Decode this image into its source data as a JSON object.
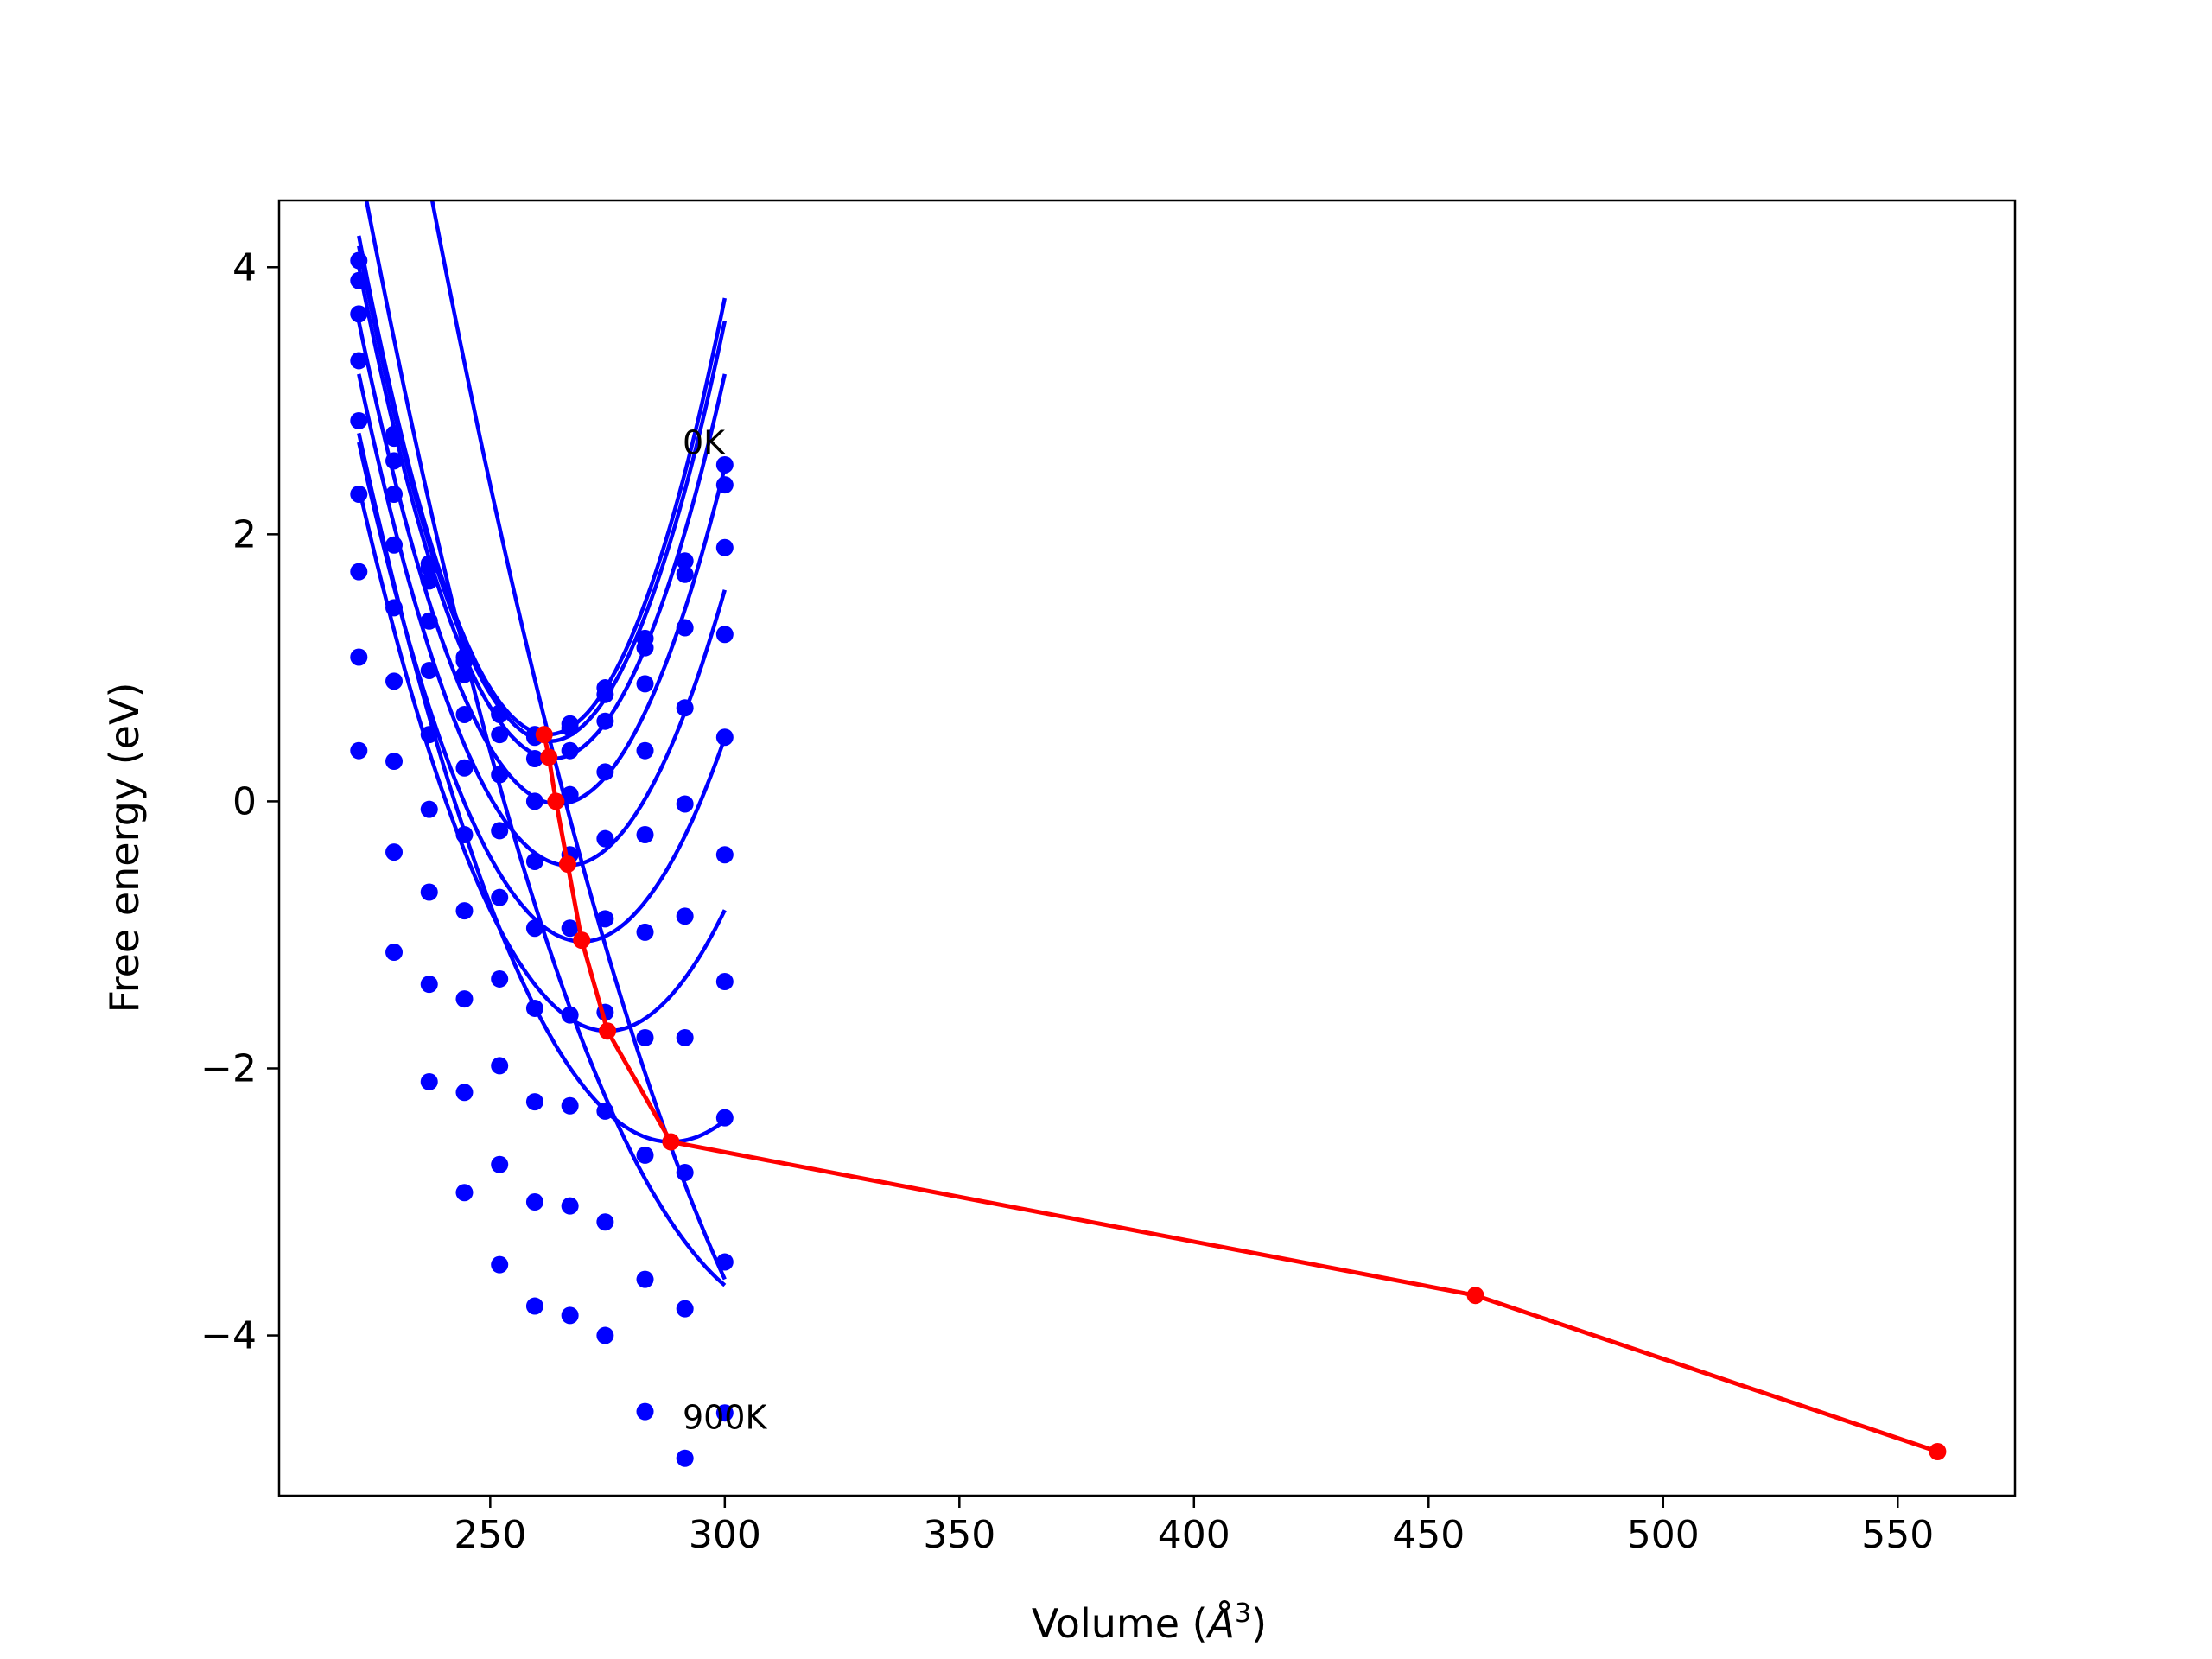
{
  "chart_data": {
    "type": "scatter",
    "title": "",
    "xlabel": "Volume (",
    "xlabel_unit_base": "Å",
    "xlabel_unit_exp": "3",
    "xlabel_close": ")",
    "ylabel": "Free energy (eV)",
    "xlim": [
      205,
      575
    ],
    "ylim": [
      -5.2,
      4.5
    ],
    "xticks": [
      250,
      300,
      350,
      400,
      450,
      500,
      550
    ],
    "yticks": [
      4,
      2,
      0,
      -2,
      -4
    ],
    "ytick_labels": [
      "4",
      "2",
      "0",
      "−2",
      "−4"
    ],
    "grid": false,
    "legend": "none",
    "annotations": [
      {
        "text": "0K",
        "x": 291,
        "y": 2.6
      },
      {
        "text": "900K",
        "x": 291,
        "y": -4.7
      }
    ],
    "series_color": "#0000ff",
    "minima_color": "#ff0000",
    "volumes": [
      222,
      229.5,
      237,
      244.5,
      252,
      259.5,
      267,
      274.5,
      283,
      291.5,
      300
    ],
    "isotherms": [
      {
        "points": [
          4.05,
          2.75,
          1.78,
          1.08,
          0.66,
          0.5,
          0.58,
          0.85,
          1.22,
          1.8,
          2.52
        ],
        "fit": {
          "a": 0.0023,
          "v0": 262.3,
          "f0": 0.5
        }
      },
      {
        "points": [
          3.9,
          2.72,
          1.75,
          1.05,
          0.65,
          0.48,
          0.55,
          0.8,
          1.15,
          1.7,
          2.37
        ],
        "fit": {
          "a": 0.00225,
          "v0": 262.6,
          "f0": 0.45
        }
      },
      {
        "points": [
          3.65,
          2.55,
          1.65,
          0.95,
          0.5,
          0.32,
          0.38,
          0.6,
          0.88,
          1.3,
          1.9
        ],
        "fit": {
          "a": 0.00215,
          "v0": 263.4,
          "f0": 0.32
        }
      },
      {
        "points": [
          3.3,
          2.3,
          1.35,
          0.65,
          0.2,
          0.0,
          0.05,
          0.22,
          0.38,
          0.7,
          1.25
        ],
        "fit": {
          "a": 0.002,
          "v0": 264.5,
          "f0": -0.02
        }
      },
      {
        "points": [
          2.85,
          1.92,
          0.98,
          0.25,
          -0.22,
          -0.45,
          -0.4,
          -0.28,
          -0.25,
          -0.02,
          0.48
        ],
        "fit": {
          "a": 0.00185,
          "v0": 266.6,
          "f0": -0.48
        }
      },
      {
        "points": [
          2.3,
          1.45,
          0.5,
          -0.25,
          -0.72,
          -0.95,
          -0.95,
          -0.88,
          -0.98,
          -0.86,
          -0.4
        ],
        "fit": {
          "a": 0.00165,
          "v0": 269.6,
          "f0": -1.05
        }
      },
      {
        "points": [
          1.72,
          0.9,
          -0.06,
          -0.82,
          -1.33,
          -1.55,
          -1.6,
          -1.58,
          -1.77,
          -1.77,
          -1.35
        ],
        "fit": {
          "a": 0.00145,
          "v0": 275.0,
          "f0": -1.72
        }
      },
      {
        "points": [
          1.08,
          0.3,
          -0.68,
          -1.48,
          -1.98,
          -2.25,
          -2.28,
          -2.32,
          -2.65,
          -2.78,
          -2.37
        ],
        "fit": {
          "a": 0.0012,
          "v0": 288.5,
          "f0": -2.55
        }
      },
      {
        "points": [
          0.38,
          -0.38,
          -1.37,
          -2.18,
          -2.72,
          -3.0,
          -3.03,
          -3.15,
          -3.58,
          -3.8,
          -3.45
        ],
        "fit": {
          "a": 0.001,
          "v0": 315.0,
          "f0": -3.85
        }
      },
      {
        "points": [
          null,
          -1.13,
          -2.1,
          -2.93,
          -3.47,
          -3.78,
          -3.85,
          -4.0,
          -4.57,
          -4.92,
          -4.58
        ],
        "fit": {
          "a": 0.00085,
          "v0": 345.0,
          "f0": -5.3
        }
      }
    ],
    "minima": {
      "x": [
        261.5,
        262.5,
        264.0,
        266.5,
        269.5,
        275.0,
        288.5,
        460.0,
        558.5
      ],
      "y": [
        0.5,
        0.33,
        0.0,
        -0.47,
        -1.04,
        -1.72,
        -2.55,
        -3.7,
        -4.87
      ]
    }
  }
}
